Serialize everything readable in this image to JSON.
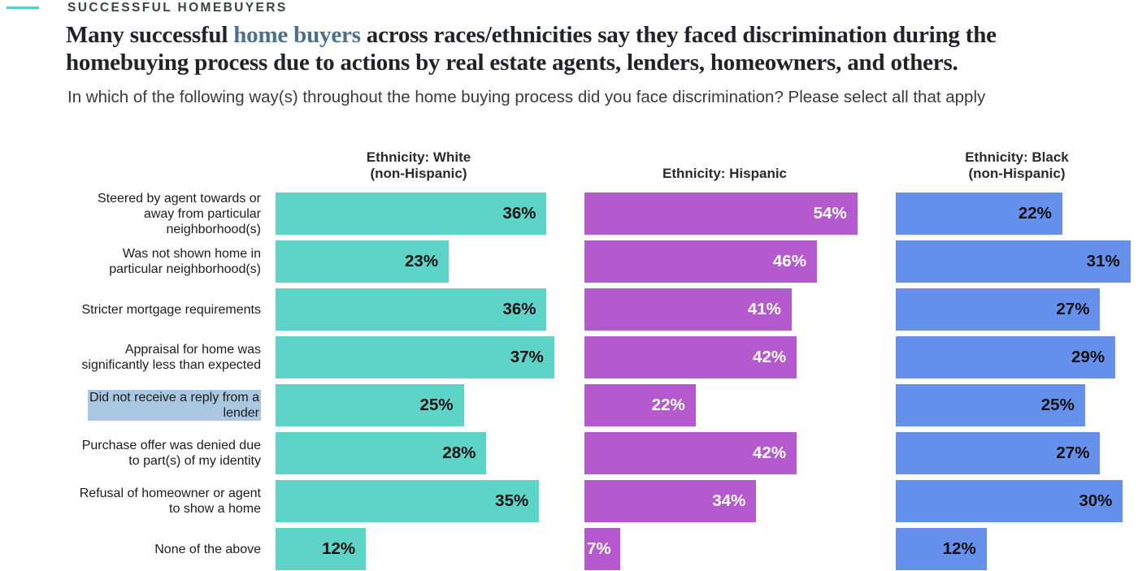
{
  "header": {
    "eyebrow": "SUCCESSFUL HOMEBUYERS",
    "title_before": "Many successful ",
    "title_link": "home buyers",
    "title_after": " across races/ethnicities say they faced discrimination during the homebuying process due to actions by real estate agents, lenders, homeowners, and others.",
    "subtitle": "In which of the following way(s) throughout the home buying process did you face discrimination? Please select all that apply"
  },
  "colors": {
    "accent_dash": "#56d0c5",
    "selection_highlight": "#a9c7e1",
    "title_link_color": "#4a708e"
  },
  "chart_data": {
    "type": "bar",
    "orientation": "horizontal",
    "value_suffix": "%",
    "title": "Many successful home buyers across races/ethnicities say they faced discrimination during the homebuying process due to actions by real estate agents, lenders, homeowners, and others.",
    "subtitle": "In which of the following way(s) throughout the home buying process did you face discrimination? Please select all that apply",
    "categories": [
      "Steered by agent towards or away from particular neighborhood(s)",
      "Was not shown home in particular neighborhood(s)",
      "Stricter mortgage requirements",
      "Appraisal for home was significantly less than expected",
      "Did not receive a reply from a lender",
      "Purchase offer was denied due to part(s) of my identity",
      "Refusal of homeowner or agent to show a home",
      "None of the above"
    ],
    "category_lines": [
      [
        "Steered by agent towards or",
        "away from particular",
        "neighborhood(s)"
      ],
      [
        "Was not shown home in",
        "particular neighborhood(s)"
      ],
      [
        "Stricter mortgage requirements"
      ],
      [
        "Appraisal for home was",
        "significantly less than expected"
      ],
      [
        "Did not receive a reply from a",
        "lender"
      ],
      [
        "Purchase offer was denied due",
        "to part(s) of my identity"
      ],
      [
        "Refusal of homeowner or agent",
        "to show a home"
      ],
      [
        "None of the above"
      ]
    ],
    "selected_category_index": 4,
    "series": [
      {
        "name": "Ethnicity: White (non-Hispanic)",
        "name_lines": [
          "Ethnicity: White",
          "(non-Hispanic)"
        ],
        "color": "#5ed4c8",
        "value_label_color": "#111111",
        "values": [
          36,
          23,
          36,
          37,
          25,
          28,
          35,
          12
        ]
      },
      {
        "name": "Ethnicity: Hispanic",
        "name_lines": [
          "Ethnicity: Hispanic"
        ],
        "color": "#b55ace",
        "value_label_color": "#ffffff",
        "values": [
          54,
          46,
          41,
          42,
          22,
          42,
          34,
          7
        ]
      },
      {
        "name": "Ethnicity: Black (non-Hispanic)",
        "name_lines": [
          "Ethnicity: Black",
          "(non-Hispanic)"
        ],
        "color": "#6590ec",
        "value_label_color": "#111111",
        "values": [
          22,
          31,
          27,
          29,
          25,
          27,
          30,
          12
        ]
      }
    ],
    "layout": {
      "legend": "none",
      "grid": false,
      "value_labels": "inside-end",
      "column_scale_max": [
        38,
        55.5,
        32
      ]
    }
  }
}
